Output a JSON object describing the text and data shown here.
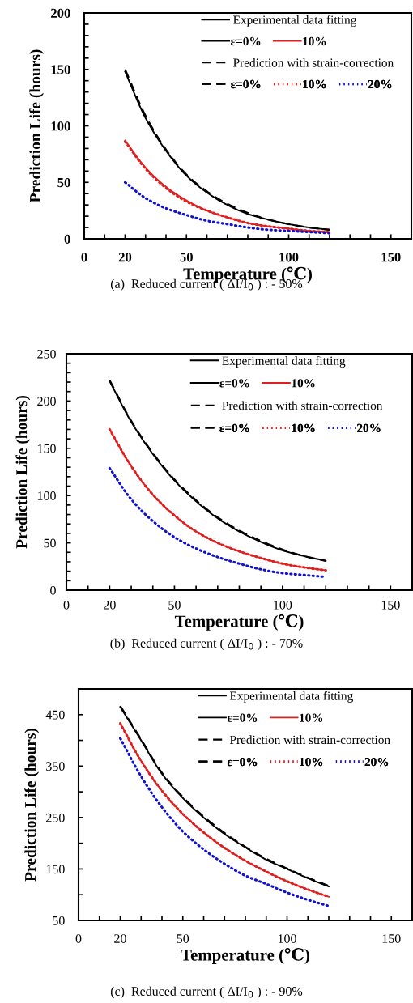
{
  "chart_data": [
    {
      "type": "line",
      "xlabel": "Temperature (℃)",
      "ylabel": "Prediction Life (hours)",
      "x": [
        20,
        30,
        40,
        50,
        60,
        70,
        80,
        90,
        100,
        110,
        120
      ],
      "xlim": [
        0,
        160
      ],
      "ylim": [
        0,
        200
      ],
      "xticks": [
        0,
        {
          "value": 10,
          "label": null
        },
        20,
        {
          "value": 30,
          "label": null
        },
        {
          "value": 40,
          "label": null
        },
        50,
        {
          "value": 60,
          "label": null
        },
        {
          "value": 70,
          "label": null
        },
        {
          "value": 80,
          "label": null
        },
        {
          "value": 90,
          "label": null
        },
        100,
        {
          "value": 110,
          "label": null
        },
        {
          "value": 120,
          "label": null
        },
        {
          "value": 130,
          "label": null
        },
        {
          "value": 140,
          "label": null
        },
        150
      ],
      "yticks": [
        0,
        {
          "value": 10,
          "label": null
        },
        {
          "value": 20,
          "label": null
        },
        {
          "value": 30,
          "label": null
        },
        {
          "value": 40,
          "label": null
        },
        50,
        {
          "value": 60,
          "label": null
        },
        {
          "value": 70,
          "label": null
        },
        {
          "value": 80,
          "label": null
        },
        {
          "value": 90,
          "label": null
        },
        100,
        {
          "value": 110,
          "label": null
        },
        {
          "value": 120,
          "label": null
        },
        {
          "value": 130,
          "label": null
        },
        {
          "value": 140,
          "label": null
        },
        150,
        {
          "value": 160,
          "label": null
        },
        {
          "value": 170,
          "label": null
        },
        {
          "value": 180,
          "label": null
        },
        {
          "value": 190,
          "label": null
        },
        200
      ],
      "legend": "top right",
      "grid": false,
      "annotations": [
        "Experimental data fitting",
        "Prediction with strain-correction",
        "(a)  Reduced current ( ΔI/I$_{0}$ ) : - 50%"
      ],
      "series": [
        {
          "name": "ε=0%",
          "color": "#000000",
          "line_style": "solid",
          "values": [
            148,
            107,
            78,
            56,
            41,
            30,
            22,
            17,
            13,
            10,
            8
          ]
        },
        {
          "name": "10%",
          "color": "#e02020",
          "line_style": "solid",
          "values": [
            87,
            63,
            46,
            34,
            25,
            19,
            14,
            11,
            9,
            7,
            6
          ]
        },
        {
          "name": "ε=0%",
          "color": "#000000",
          "line_style": "dashed",
          "values": [
            150,
            109,
            79,
            57,
            42,
            31,
            23,
            17,
            13,
            10,
            8
          ]
        },
        {
          "name": "10%",
          "color": "#e02020",
          "line_style": "dotted",
          "values": [
            86,
            62,
            45,
            33,
            25,
            19,
            14,
            11,
            9,
            7,
            6
          ]
        },
        {
          "name": "20%",
          "color": "#1010d0",
          "line_style": "dotted",
          "values": [
            50,
            36,
            27,
            21,
            16,
            13,
            10,
            8,
            7,
            6,
            5
          ]
        }
      ]
    },
    {
      "type": "line",
      "xlabel": "Temperature (℃)",
      "ylabel": "Prediction Life (hours)",
      "x": [
        20,
        30,
        40,
        50,
        60,
        70,
        80,
        90,
        100,
        110,
        120
      ],
      "xlim": [
        0,
        160
      ],
      "ylim": [
        0,
        250
      ],
      "xticks": [
        0,
        {
          "value": 10,
          "label": null
        },
        20,
        {
          "value": 30,
          "label": null
        },
        {
          "value": 40,
          "label": null
        },
        50,
        {
          "value": 60,
          "label": null
        },
        {
          "value": 70,
          "label": null
        },
        {
          "value": 80,
          "label": null
        },
        {
          "value": 90,
          "label": null
        },
        100,
        {
          "value": 110,
          "label": null
        },
        {
          "value": 120,
          "label": null
        },
        {
          "value": 130,
          "label": null
        },
        {
          "value": 140,
          "label": null
        },
        150
      ],
      "yticks": [
        0,
        {
          "value": 10,
          "label": null
        },
        {
          "value": 20,
          "label": null
        },
        {
          "value": 30,
          "label": null
        },
        {
          "value": 40,
          "label": null
        },
        50,
        {
          "value": 60,
          "label": null
        },
        {
          "value": 70,
          "label": null
        },
        {
          "value": 80,
          "label": null
        },
        {
          "value": 90,
          "label": null
        },
        100,
        {
          "value": 110,
          "label": null
        },
        {
          "value": 120,
          "label": null
        },
        {
          "value": 130,
          "label": null
        },
        {
          "value": 140,
          "label": null
        },
        150,
        {
          "value": 160,
          "label": null
        },
        {
          "value": 170,
          "label": null
        },
        {
          "value": 180,
          "label": null
        },
        {
          "value": 190,
          "label": null
        },
        200,
        {
          "value": 210,
          "label": null
        },
        {
          "value": 220,
          "label": null
        },
        {
          "value": 230,
          "label": null
        },
        {
          "value": 240,
          "label": null
        },
        250
      ],
      "legend": "top right",
      "grid": false,
      "annotations": [
        "Experimental data fitting",
        "Prediction with strain-correction",
        "(b)  Reduced current ( ΔI/I$_{0}$ ) : - 70%"
      ],
      "series": [
        {
          "name": "ε=0%",
          "color": "#000000",
          "line_style": "solid",
          "values": [
            221,
            178,
            144,
            116,
            94,
            76,
            62,
            51,
            42,
            36,
            31
          ]
        },
        {
          "name": "10%",
          "color": "#e02020",
          "line_style": "solid",
          "values": [
            170,
            131,
            101,
            79,
            62,
            50,
            41,
            34,
            28,
            24,
            21
          ]
        },
        {
          "name": "ε=0%",
          "color": "#000000",
          "line_style": "dashed",
          "values": [
            222,
            179,
            145,
            117,
            95,
            77,
            63,
            52,
            43,
            36,
            31
          ]
        },
        {
          "name": "10%",
          "color": "#e02020",
          "line_style": "dotted",
          "values": [
            170,
            131,
            101,
            79,
            62,
            50,
            41,
            34,
            28,
            24,
            21
          ]
        },
        {
          "name": "20%",
          "color": "#1010d0",
          "line_style": "dotted",
          "values": [
            129,
            96,
            73,
            56,
            44,
            35,
            28,
            22,
            18,
            16,
            14
          ]
        }
      ]
    },
    {
      "type": "line",
      "xlabel": "Temperature (℃)",
      "ylabel": "Prediction Life (hours)",
      "x": [
        20,
        30,
        40,
        50,
        60,
        70,
        80,
        90,
        100,
        110,
        120
      ],
      "xlim": [
        0,
        160
      ],
      "ylim": [
        50,
        500
      ],
      "xticks": [
        0,
        {
          "value": 10,
          "label": null
        },
        20,
        {
          "value": 30,
          "label": null
        },
        {
          "value": 40,
          "label": null
        },
        50,
        {
          "value": 60,
          "label": null
        },
        {
          "value": 70,
          "label": null
        },
        {
          "value": 80,
          "label": null
        },
        {
          "value": 90,
          "label": null
        },
        100,
        {
          "value": 110,
          "label": null
        },
        {
          "value": 120,
          "label": null
        },
        {
          "value": 130,
          "label": null
        },
        {
          "value": 140,
          "label": null
        },
        150
      ],
      "yticks": [
        50,
        {
          "value": 100,
          "label": null
        },
        150,
        {
          "value": 200,
          "label": null
        },
        250,
        {
          "value": 300,
          "label": null
        },
        350,
        {
          "value": 400,
          "label": null
        },
        450
      ],
      "legend": "top right",
      "grid": false,
      "annotations": [
        "Experimental data fitting",
        "Prediction with strain-correction",
        "(c)  Reduced current ( ΔI/I$_{0}$ ) : - 90%"
      ],
      "series": [
        {
          "name": "ε=0%",
          "color": "#000000",
          "line_style": "solid",
          "values": [
            465,
            400,
            335,
            288,
            250,
            218,
            192,
            168,
            150,
            132,
            116
          ]
        },
        {
          "name": "10%",
          "color": "#e02020",
          "line_style": "solid",
          "values": [
            433,
            360,
            302,
            257,
            221,
            191,
            166,
            145,
            126,
            110,
            96
          ]
        },
        {
          "name": "ε=0%",
          "color": "#000000",
          "line_style": "dashed",
          "values": [
            467,
            402,
            337,
            290,
            252,
            220,
            193,
            170,
            151,
            133,
            117
          ]
        },
        {
          "name": "10%",
          "color": "#e02020",
          "line_style": "dotted",
          "values": [
            433,
            360,
            302,
            257,
            221,
            191,
            166,
            145,
            126,
            110,
            96
          ]
        },
        {
          "name": "20%",
          "color": "#1010d0",
          "line_style": "dotted",
          "values": [
            404,
            330,
            270,
            223,
            188,
            160,
            137,
            121,
            104,
            90,
            78
          ]
        }
      ]
    }
  ]
}
